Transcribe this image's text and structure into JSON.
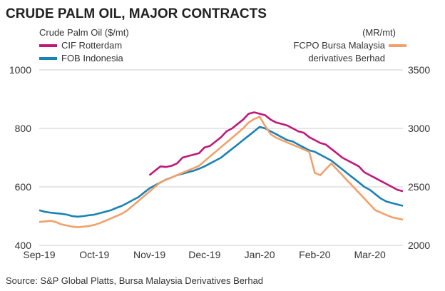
{
  "chart_data": {
    "type": "line",
    "title": "CRUDE PALM OIL, MAJOR CONTRACTS",
    "left_axis_label": "Crude Palm Oil ($/mt)",
    "right_axis_label": "(MR/mt)",
    "source": "Source: S&P Global Platts, Bursa Malaysia Derivatives Berhad",
    "x_ticks": [
      "Sep-19",
      "Oct-19",
      "Nov-19",
      "Dec-19",
      "Jan-20",
      "Feb-20",
      "Mar-20"
    ],
    "left_ylim": [
      400,
      1000
    ],
    "left_ticks": [
      400,
      600,
      800,
      1000
    ],
    "right_ylim": [
      2000,
      3500
    ],
    "right_ticks": [
      2000,
      2500,
      3000,
      3500
    ],
    "gridlines": "horizontal",
    "colors": {
      "CIF Rotterdam": "#c0187a",
      "FOB Indonesia": "#1a82b4",
      "FCPO Bursa Malaysia derivatives Berhad": "#f2a06a"
    },
    "series": [
      {
        "name": "CIF Rotterdam",
        "axis": "left",
        "x": [
          2.0,
          2.1,
          2.2,
          2.3,
          2.4,
          2.5,
          2.6,
          2.7,
          2.8,
          2.9,
          3.0,
          3.1,
          3.2,
          3.3,
          3.4,
          3.5,
          3.6,
          3.7,
          3.8,
          3.9,
          4.0,
          4.1,
          4.2,
          4.3,
          4.4,
          4.5,
          4.6,
          4.7,
          4.8,
          4.9,
          5.0,
          5.1,
          5.2,
          5.3,
          5.4,
          5.5,
          5.6,
          5.7,
          5.8,
          5.9,
          6.0,
          6.1,
          6.2,
          6.3,
          6.4,
          6.5,
          6.6
        ],
        "values": [
          640,
          655,
          670,
          668,
          672,
          680,
          700,
          705,
          710,
          715,
          735,
          740,
          755,
          770,
          790,
          800,
          815,
          830,
          850,
          855,
          850,
          845,
          830,
          820,
          815,
          810,
          800,
          790,
          785,
          770,
          760,
          750,
          745,
          730,
          715,
          700,
          690,
          680,
          670,
          650,
          640,
          630,
          620,
          610,
          600,
          590,
          585
        ]
      },
      {
        "name": "FOB Indonesia",
        "axis": "left",
        "x": [
          0.0,
          0.1,
          0.2,
          0.3,
          0.4,
          0.5,
          0.6,
          0.7,
          0.8,
          0.9,
          1.0,
          1.1,
          1.2,
          1.3,
          1.4,
          1.5,
          1.6,
          1.7,
          1.8,
          1.9,
          2.0,
          2.1,
          2.2,
          2.3,
          2.4,
          2.5,
          2.6,
          2.7,
          2.8,
          2.9,
          3.0,
          3.1,
          3.2,
          3.3,
          3.4,
          3.5,
          3.6,
          3.7,
          3.8,
          3.9,
          4.0,
          4.1,
          4.2,
          4.3,
          4.4,
          4.5,
          4.6,
          4.7,
          4.8,
          4.9,
          5.0,
          5.1,
          5.2,
          5.3,
          5.4,
          5.5,
          5.6,
          5.7,
          5.8,
          5.9,
          6.0,
          6.1,
          6.2,
          6.3,
          6.4,
          6.5,
          6.6
        ],
        "values": [
          520,
          515,
          512,
          510,
          508,
          505,
          500,
          498,
          500,
          503,
          505,
          510,
          515,
          520,
          528,
          535,
          545,
          555,
          565,
          580,
          595,
          605,
          615,
          625,
          632,
          640,
          645,
          650,
          655,
          662,
          670,
          680,
          690,
          700,
          715,
          730,
          745,
          760,
          775,
          790,
          805,
          800,
          790,
          780,
          770,
          760,
          755,
          745,
          735,
          725,
          720,
          710,
          700,
          690,
          675,
          660,
          645,
          630,
          615,
          600,
          590,
          575,
          560,
          550,
          545,
          540,
          535
        ]
      },
      {
        "name": "FCPO Bursa Malaysia derivatives Berhad",
        "axis": "right",
        "x": [
          0.0,
          0.1,
          0.2,
          0.3,
          0.4,
          0.5,
          0.6,
          0.7,
          0.8,
          0.9,
          1.0,
          1.1,
          1.2,
          1.3,
          1.4,
          1.5,
          1.6,
          1.7,
          1.8,
          1.9,
          2.0,
          2.1,
          2.2,
          2.3,
          2.4,
          2.5,
          2.6,
          2.7,
          2.8,
          2.9,
          3.0,
          3.1,
          3.2,
          3.3,
          3.4,
          3.5,
          3.6,
          3.7,
          3.8,
          3.9,
          4.0,
          4.1,
          4.2,
          4.3,
          4.4,
          4.5,
          4.6,
          4.7,
          4.8,
          4.9,
          5.0,
          5.1,
          5.2,
          5.3,
          5.4,
          5.5,
          5.6,
          5.7,
          5.8,
          5.9,
          6.0,
          6.1,
          6.2,
          6.3,
          6.4,
          6.5,
          6.6
        ],
        "values": [
          2200,
          2205,
          2210,
          2200,
          2180,
          2170,
          2160,
          2155,
          2160,
          2165,
          2175,
          2190,
          2210,
          2230,
          2250,
          2270,
          2300,
          2340,
          2380,
          2420,
          2460,
          2500,
          2540,
          2560,
          2580,
          2600,
          2620,
          2640,
          2660,
          2680,
          2720,
          2760,
          2800,
          2840,
          2880,
          2920,
          2960,
          3000,
          3050,
          3080,
          3100,
          3020,
          2950,
          2920,
          2900,
          2880,
          2860,
          2840,
          2820,
          2800,
          2620,
          2600,
          2650,
          2700,
          2650,
          2600,
          2550,
          2500,
          2450,
          2400,
          2350,
          2300,
          2280,
          2260,
          2240,
          2230,
          2220
        ]
      }
    ]
  }
}
